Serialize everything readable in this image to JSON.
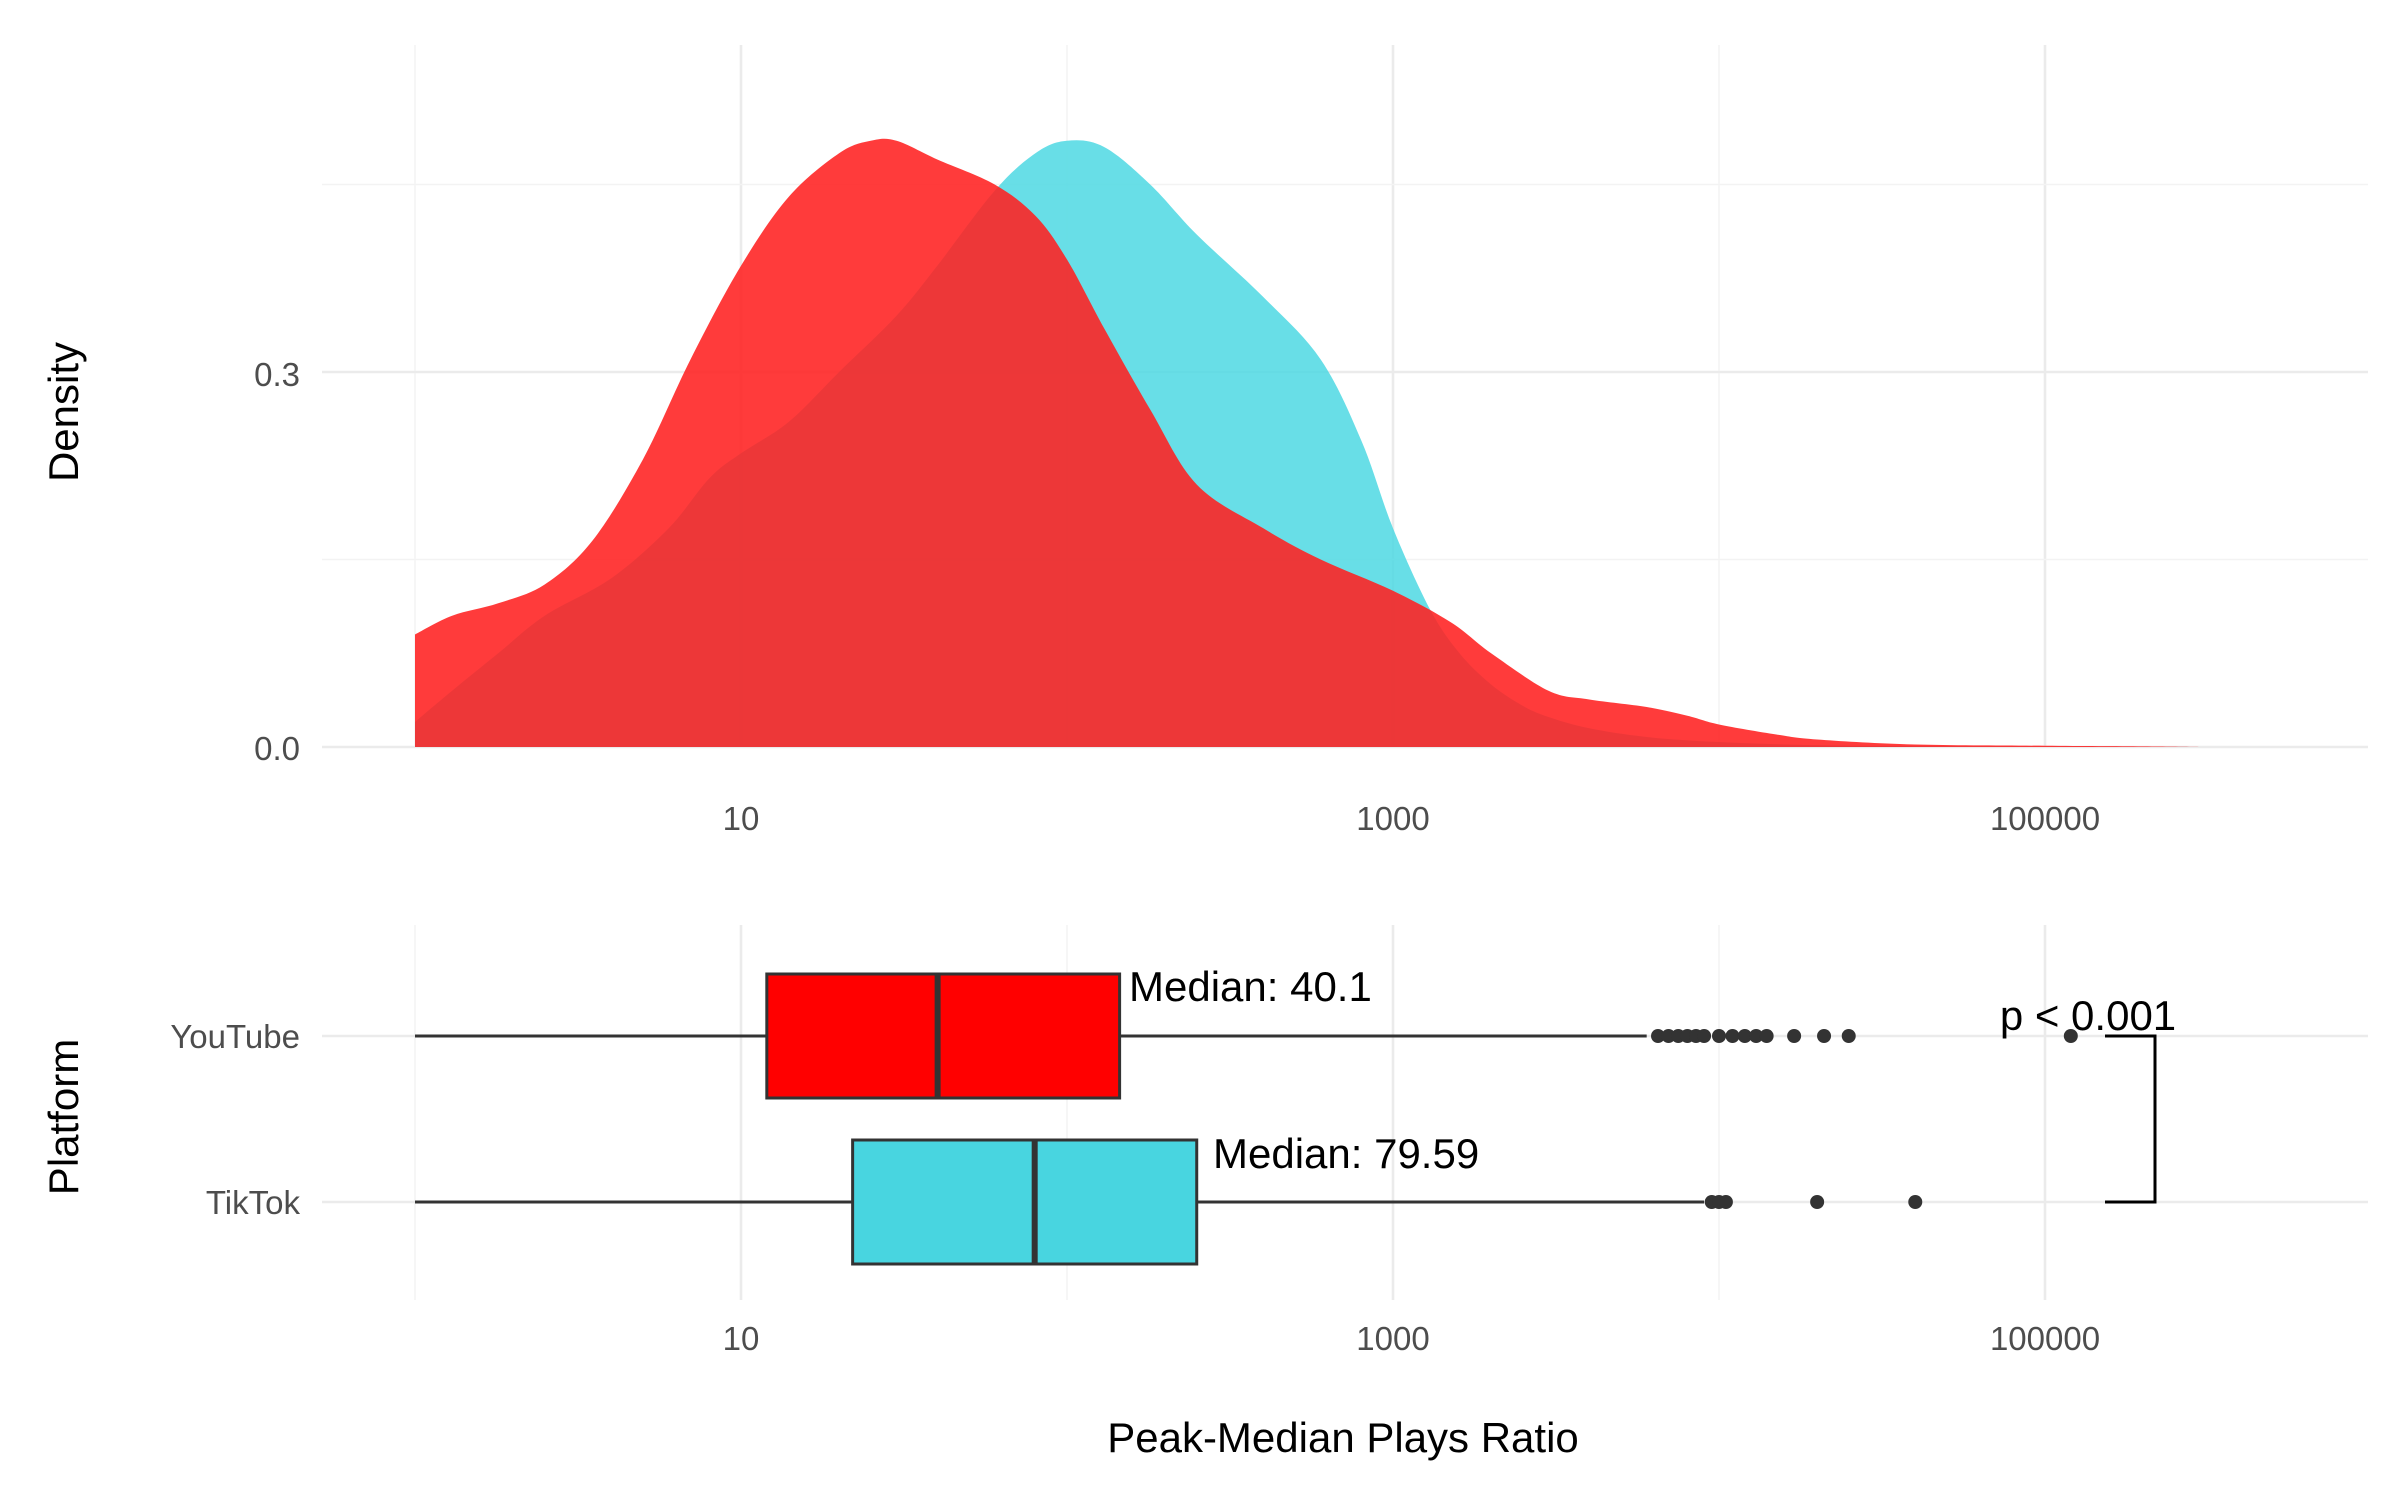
{
  "chart_data": [
    {
      "type": "area",
      "subtype": "density",
      "x_scale": "log10",
      "xlim": [
        1,
        350000
      ],
      "ylim": [
        0,
        0.5
      ],
      "ylabel": "Density",
      "y_ticks": [
        0.0,
        0.3
      ],
      "y_tick_labels": [
        "0.0",
        "0.3"
      ],
      "x_ticks": [
        10,
        1000,
        100000
      ],
      "x_tick_labels": [
        "10",
        "1000",
        "100000"
      ],
      "grid": true,
      "legend": "none",
      "series": [
        {
          "platform": "TikTok",
          "color": "#4DD8E3",
          "x": [
            1,
            1.3,
            1.8,
            2.5,
            4,
            6,
            8,
            10,
            14,
            20,
            30,
            40,
            60,
            80,
            100,
            130,
            180,
            250,
            400,
            600,
            800,
            1000,
            1300,
            1600,
            2000,
            2500,
            3000,
            4000,
            6000,
            10000,
            20000,
            50000,
            100000,
            200000,
            300000
          ],
          "y": [
            0.02,
            0.045,
            0.075,
            0.105,
            0.135,
            0.175,
            0.215,
            0.235,
            0.26,
            0.3,
            0.345,
            0.385,
            0.445,
            0.475,
            0.485,
            0.48,
            0.45,
            0.41,
            0.36,
            0.31,
            0.245,
            0.175,
            0.11,
            0.075,
            0.05,
            0.033,
            0.024,
            0.015,
            0.008,
            0.004,
            0.0015,
            0.0005,
            0.0002,
            0.0001,
            0
          ]
        },
        {
          "platform": "YouTube",
          "color": "#FF2020",
          "x": [
            1,
            1.3,
            1.8,
            2.5,
            3.5,
            5,
            7,
            10,
            14,
            20,
            25,
            30,
            40,
            60,
            80,
            100,
            130,
            180,
            250,
            400,
            600,
            1000,
            1500,
            2000,
            3000,
            4000,
            6000,
            8000,
            10000,
            15000,
            20000,
            40000,
            100000,
            200000,
            300000
          ],
          "y": [
            0.09,
            0.105,
            0.115,
            0.13,
            0.165,
            0.23,
            0.31,
            0.385,
            0.44,
            0.475,
            0.485,
            0.485,
            0.47,
            0.45,
            0.425,
            0.39,
            0.335,
            0.27,
            0.21,
            0.175,
            0.15,
            0.125,
            0.1,
            0.075,
            0.045,
            0.038,
            0.032,
            0.025,
            0.018,
            0.01,
            0.006,
            0.002,
            0.001,
            0.0005,
            0
          ]
        }
      ]
    },
    {
      "type": "box",
      "orientation": "horizontal",
      "x_scale": "log10",
      "xlim": [
        1,
        350000
      ],
      "xlabel": "Peak-Median Plays Ratio",
      "ylabel": "Platform",
      "x_ticks": [
        10,
        1000,
        100000
      ],
      "x_tick_labels": [
        "10",
        "1000",
        "100000"
      ],
      "categories": [
        "YouTube",
        "TikTok"
      ],
      "grid": true,
      "legend": "none",
      "boxes": [
        {
          "category": "YouTube",
          "color": "#FF0000",
          "whisker_low": 1,
          "q1": 12,
          "median": 40.1,
          "q3": 145,
          "whisker_high": 6000,
          "outliers": [
            6500,
            7000,
            7500,
            8000,
            8500,
            9000,
            10000,
            11000,
            12000,
            13000,
            14000,
            17000,
            21000,
            25000,
            120000
          ],
          "label": "Median: 40.1"
        },
        {
          "category": "TikTok",
          "color": "#48D5E0",
          "whisker_low": 1,
          "q1": 22,
          "median": 79.59,
          "q3": 250,
          "whisker_high": 9000,
          "outliers": [
            9500,
            10000,
            10500,
            20000,
            40000
          ],
          "label": "Median: 79.59"
        }
      ],
      "significance": {
        "label": "p < 0.001",
        "between": [
          "YouTube",
          "TikTok"
        ]
      }
    }
  ]
}
